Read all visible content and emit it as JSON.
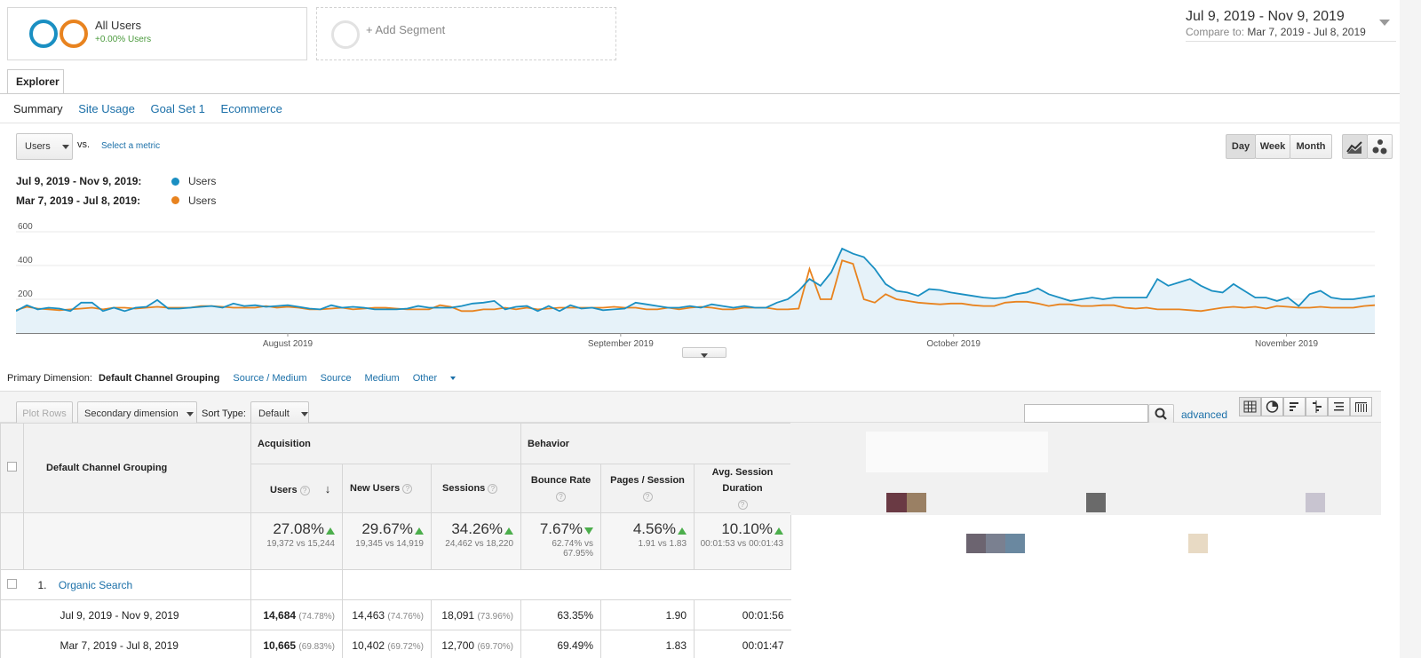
{
  "segments": {
    "all_users": {
      "title": "All Users",
      "sub": "+0.00% Users"
    },
    "add_label": "+ Add Segment"
  },
  "date_range": {
    "main": "Jul 9, 2019 - Nov 9, 2019",
    "compare_prefix": "Compare to:",
    "compare_value": "Mar 7, 2019 - Jul 8, 2019"
  },
  "tabs": {
    "explorer": "Explorer"
  },
  "subtabs": [
    "Summary",
    "Site Usage",
    "Goal Set 1",
    "Ecommerce"
  ],
  "metric": {
    "selected": "Users",
    "vs": "vs.",
    "select_metric": "Select a metric"
  },
  "granularity": [
    "Day",
    "Week",
    "Month"
  ],
  "legend": [
    {
      "range": "Jul 9, 2019 - Nov 9, 2019:",
      "metric": "Users",
      "color": "#1a8fc2"
    },
    {
      "range": "Mar 7, 2019 - Jul 8, 2019:",
      "metric": "Users",
      "color": "#e8831f"
    }
  ],
  "chart_data": {
    "type": "line",
    "ylim": [
      0,
      600
    ],
    "yticks": [
      "600",
      "400",
      "200"
    ],
    "xlabels": [
      "August 2019",
      "September 2019",
      "October 2019",
      "November 2019"
    ],
    "series": [
      {
        "name": "Users",
        "color": "#1a8fc2",
        "values": [
          130,
          165,
          140,
          150,
          145,
          130,
          180,
          180,
          130,
          150,
          130,
          150,
          155,
          195,
          145,
          145,
          150,
          155,
          160,
          150,
          175,
          160,
          165,
          155,
          160,
          165,
          155,
          145,
          140,
          165,
          150,
          155,
          150,
          140,
          140,
          140,
          145,
          160,
          150,
          150,
          150,
          160,
          175,
          180,
          190,
          140,
          155,
          160,
          130,
          160,
          130,
          165,
          145,
          150,
          135,
          140,
          145,
          180,
          170,
          160,
          150,
          150,
          160,
          150,
          170,
          160,
          150,
          160,
          150,
          150,
          180,
          200,
          250,
          320,
          280,
          360,
          500,
          470,
          450,
          380,
          290,
          250,
          240,
          220,
          260,
          255,
          240,
          230,
          220,
          210,
          205,
          210,
          230,
          240,
          265,
          230,
          210,
          190,
          200,
          210,
          200,
          210,
          210,
          210,
          210,
          320,
          280,
          300,
          320,
          280,
          250,
          240,
          290,
          250,
          210,
          210,
          190,
          210,
          160,
          230,
          250,
          210,
          200,
          200,
          210,
          220
        ],
        "fill": true
      },
      {
        "name": "Users",
        "color": "#e8831f",
        "values": [
          135,
          155,
          145,
          140,
          135,
          140,
          145,
          150,
          140,
          150,
          150,
          145,
          150,
          155,
          150,
          150,
          150,
          160,
          160,
          155,
          150,
          150,
          150,
          160,
          150,
          155,
          150,
          140,
          140,
          145,
          150,
          140,
          145,
          150,
          150,
          145,
          140,
          140,
          140,
          165,
          155,
          130,
          130,
          140,
          140,
          150,
          140,
          150,
          140,
          145,
          150,
          150,
          150,
          150,
          150,
          155,
          150,
          150,
          140,
          140,
          150,
          140,
          150,
          155,
          150,
          140,
          140,
          150,
          150,
          150,
          140,
          140,
          145,
          380,
          200,
          200,
          430,
          410,
          200,
          180,
          230,
          200,
          190,
          180,
          175,
          170,
          175,
          175,
          165,
          160,
          160,
          180,
          185,
          185,
          175,
          160,
          170,
          170,
          160,
          160,
          165,
          165,
          150,
          145,
          150,
          140,
          140,
          140,
          135,
          130,
          140,
          150,
          155,
          150,
          155,
          145,
          160,
          155,
          150,
          150,
          155,
          150,
          150,
          150,
          160,
          165
        ]
      }
    ]
  },
  "primary_dimension": {
    "label": "Primary Dimension:",
    "selected": "Default Channel Grouping",
    "options": [
      "Source / Medium",
      "Source",
      "Medium",
      "Other"
    ]
  },
  "toolbar": {
    "plot_rows": "Plot Rows",
    "secondary_dimension": "Secondary dimension",
    "sort_type_label": "Sort Type:",
    "sort_type_value": "Default",
    "search_placeholder": "",
    "advanced": "advanced"
  },
  "table": {
    "dimension_header": "Default Channel Grouping",
    "group_acquisition": "Acquisition",
    "group_behavior": "Behavior",
    "columns": [
      "Users",
      "New Users",
      "Sessions",
      "Bounce Rate",
      "Pages / Session",
      "Avg. Session Duration"
    ],
    "totals": [
      {
        "value": "27.08%",
        "sub": "19,372 vs 15,244",
        "dir": "up"
      },
      {
        "value": "29.67%",
        "sub": "19,345 vs 14,919",
        "dir": "up"
      },
      {
        "value": "34.26%",
        "sub": "24,462 vs 18,220",
        "dir": "up"
      },
      {
        "value": "7.67%",
        "sub": "62.74% vs 67.95%",
        "dir": "down"
      },
      {
        "value": "4.56%",
        "sub": "1.91 vs 1.83",
        "dir": "up"
      },
      {
        "value": "10.10%",
        "sub": "00:01:53 vs 00:01:43",
        "dir": "up"
      }
    ],
    "row": {
      "index": "1.",
      "name": "Organic Search",
      "sub_rows": [
        {
          "label": "Jul 9, 2019 - Nov 9, 2019",
          "users": "14,684",
          "users_pct": "(74.78%)",
          "new_users": "14,463",
          "new_users_pct": "(74.76%)",
          "sessions": "18,091",
          "sessions_pct": "(73.96%)",
          "bounce": "63.35%",
          "pages": "1.90",
          "duration": "00:01:56"
        },
        {
          "label": "Mar 7, 2019 - Jul 8, 2019",
          "users": "10,665",
          "users_pct": "(69.83%)",
          "new_users": "10,402",
          "new_users_pct": "(69.72%)",
          "sessions": "12,700",
          "sessions_pct": "(69.70%)",
          "bounce": "69.49%",
          "pages": "1.83",
          "duration": "00:01:47"
        }
      ]
    }
  }
}
